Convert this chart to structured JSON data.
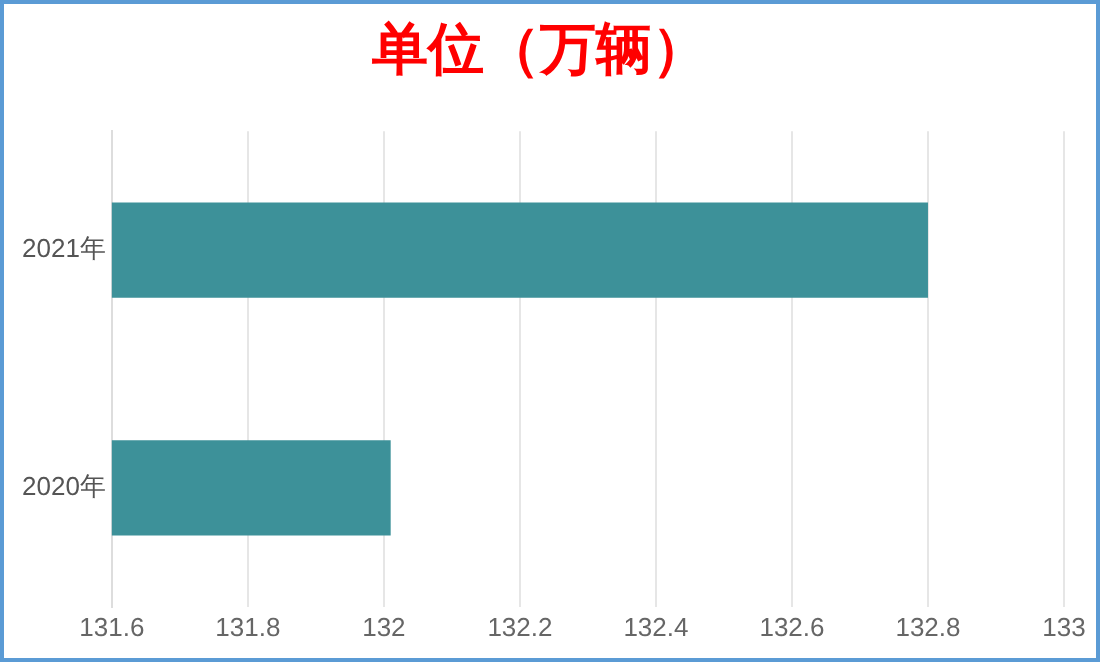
{
  "chart_data": {
    "type": "bar",
    "orientation": "horizontal",
    "title": "单位（万辆）",
    "categories": [
      "2021年",
      "2020年"
    ],
    "values": [
      132.8,
      132.01
    ],
    "color": "#3d9199",
    "xlim": [
      131.6,
      133
    ],
    "xticks": [
      131.6,
      131.8,
      132,
      132.2,
      132.4,
      132.6,
      132.8,
      133
    ],
    "grid": "x",
    "legend": false
  }
}
